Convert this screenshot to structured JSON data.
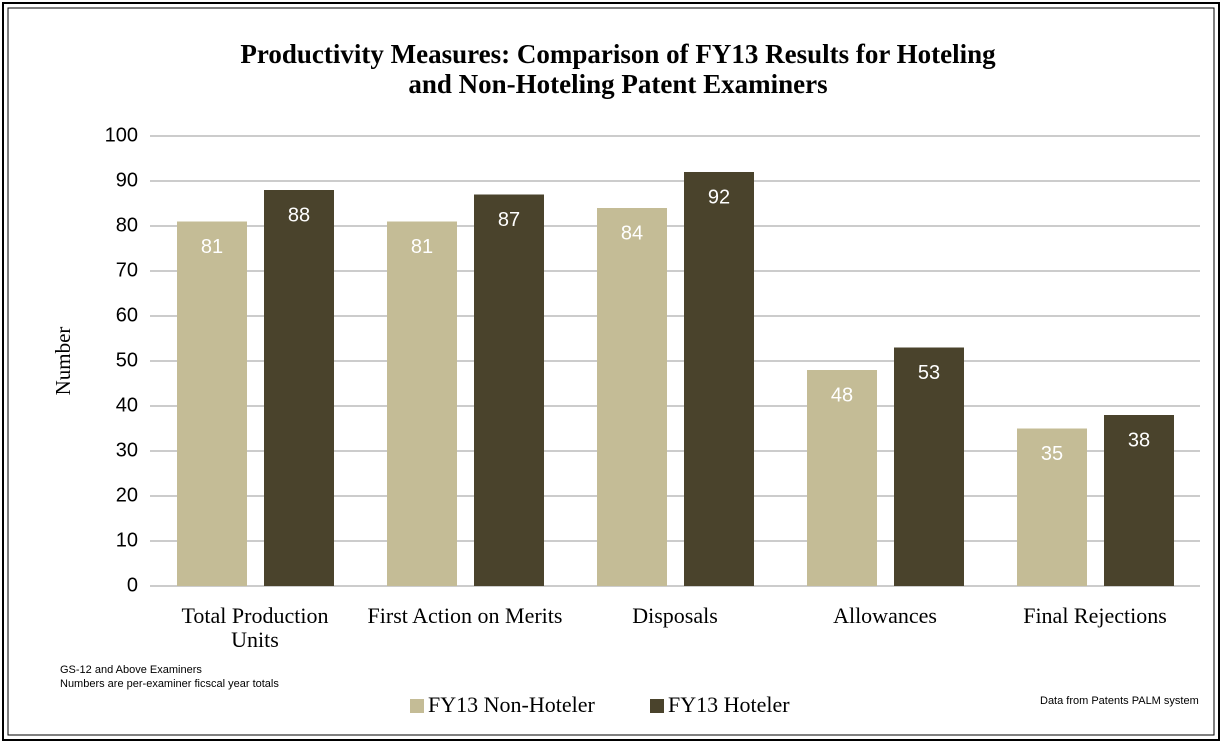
{
  "chart_data": {
    "type": "bar",
    "title": "Productivity Measures: Comparison of FY13 Results for Hoteling and Non-Hoteling Patent Examiners",
    "ylabel": "Number",
    "categories": [
      "Total Production Units",
      "First Action on Merits",
      "Disposals",
      "Allowances",
      "Final Rejections"
    ],
    "series": [
      {
        "name": "FY13 Non-Hoteler",
        "color": "#c4bc96",
        "values": [
          81,
          81,
          84,
          48,
          35
        ]
      },
      {
        "name": "FY13 Hoteler",
        "color": "#4a432c",
        "values": [
          88,
          87,
          92,
          53,
          38
        ]
      }
    ],
    "ylim": [
      0,
      100
    ],
    "yticks": [
      0,
      10,
      20,
      30,
      40,
      50,
      60,
      70,
      80,
      90,
      100
    ],
    "grid": true,
    "legend": "bottom",
    "notes": [
      "GS-12 and Above Examiners",
      "Numbers are per-examiner ficscal year totals"
    ],
    "source": "Data from Patents PALM system"
  }
}
